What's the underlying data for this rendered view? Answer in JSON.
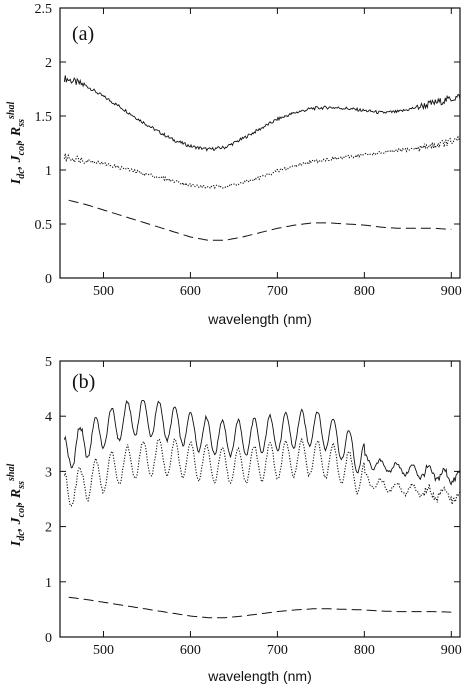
{
  "chart_data": [
    {
      "type": "line",
      "panel_label": "(a)",
      "xlabel": "wavelength (nm)",
      "ylabel": {
        "I": "I",
        "I_sub": "dc",
        "J": "J",
        "J_sub": "col",
        "R": "R",
        "R_sub": "ss",
        "R_sup": "shal"
      },
      "xlim": [
        450,
        910
      ],
      "ylim": [
        0,
        2.5
      ],
      "xticks": [
        "500",
        "600",
        "700",
        "800",
        "900"
      ],
      "yticks": [
        "0",
        "0.5",
        "1",
        "1.5",
        "2",
        "2.5"
      ],
      "series": [
        {
          "style": "solid-noisy",
          "x": [
            455,
            480,
            500,
            520,
            540,
            560,
            580,
            600,
            620,
            640,
            660,
            680,
            700,
            720,
            740,
            760,
            780,
            800,
            820,
            840,
            860,
            880,
            900,
            910
          ],
          "y": [
            1.85,
            1.78,
            1.68,
            1.58,
            1.47,
            1.37,
            1.28,
            1.22,
            1.19,
            1.21,
            1.29,
            1.38,
            1.47,
            1.53,
            1.57,
            1.58,
            1.57,
            1.55,
            1.53,
            1.54,
            1.58,
            1.62,
            1.66,
            1.68
          ]
        },
        {
          "style": "dotted-noisy",
          "x": [
            455,
            480,
            500,
            520,
            540,
            560,
            580,
            600,
            620,
            640,
            660,
            680,
            700,
            720,
            740,
            760,
            780,
            800,
            820,
            840,
            860,
            880,
            900,
            910
          ],
          "y": [
            1.12,
            1.09,
            1.06,
            1.02,
            0.98,
            0.94,
            0.9,
            0.86,
            0.84,
            0.85,
            0.88,
            0.93,
            0.99,
            1.04,
            1.08,
            1.1,
            1.12,
            1.14,
            1.16,
            1.18,
            1.2,
            1.23,
            1.26,
            1.28
          ]
        },
        {
          "style": "dashed",
          "x": [
            460,
            480,
            500,
            520,
            540,
            560,
            580,
            600,
            620,
            640,
            660,
            680,
            700,
            720,
            740,
            760,
            780,
            800,
            820,
            840,
            860,
            880,
            900
          ],
          "y": [
            0.72,
            0.68,
            0.63,
            0.58,
            0.53,
            0.48,
            0.43,
            0.38,
            0.35,
            0.35,
            0.38,
            0.42,
            0.46,
            0.49,
            0.51,
            0.51,
            0.5,
            0.49,
            0.47,
            0.46,
            0.46,
            0.46,
            0.45
          ]
        }
      ]
    },
    {
      "type": "line",
      "panel_label": "(b)",
      "xlabel": "wavelength (nm)",
      "ylabel": {
        "I": "I",
        "I_sub": "dc",
        "J": "J",
        "J_sub": "col",
        "R": "R",
        "R_sub": "ss",
        "R_sup": "shal"
      },
      "xlim": [
        450,
        910
      ],
      "ylim": [
        0,
        5
      ],
      "xticks": [
        "500",
        "600",
        "700",
        "800",
        "900"
      ],
      "yticks": [
        "0",
        "1",
        "2",
        "3",
        "4",
        "5"
      ],
      "series": [
        {
          "style": "solid-oscillating",
          "x": [
            455,
            480,
            500,
            520,
            540,
            560,
            580,
            600,
            620,
            640,
            660,
            680,
            700,
            720,
            740,
            760,
            780,
            800,
            820,
            840,
            860,
            880,
            900,
            910
          ],
          "y": [
            3.3,
            3.55,
            3.75,
            3.9,
            4.0,
            3.95,
            3.85,
            3.75,
            3.65,
            3.6,
            3.6,
            3.65,
            3.7,
            3.75,
            3.8,
            3.7,
            3.45,
            3.2,
            3.1,
            3.05,
            3.0,
            2.95,
            2.9,
            2.9
          ]
        },
        {
          "style": "dotted-oscillating",
          "x": [
            455,
            480,
            500,
            520,
            540,
            560,
            580,
            600,
            620,
            640,
            660,
            680,
            700,
            720,
            740,
            760,
            780,
            800,
            820,
            840,
            860,
            880,
            900,
            910
          ],
          "y": [
            2.65,
            2.8,
            2.95,
            3.1,
            3.2,
            3.25,
            3.25,
            3.2,
            3.15,
            3.1,
            3.1,
            3.15,
            3.2,
            3.25,
            3.25,
            3.2,
            3.05,
            2.85,
            2.75,
            2.7,
            2.65,
            2.6,
            2.55,
            2.55
          ]
        },
        {
          "style": "dashed",
          "x": [
            460,
            480,
            500,
            520,
            540,
            560,
            580,
            600,
            620,
            640,
            660,
            680,
            700,
            720,
            740,
            760,
            780,
            800,
            820,
            840,
            860,
            880,
            900
          ],
          "y": [
            0.72,
            0.68,
            0.63,
            0.58,
            0.53,
            0.48,
            0.43,
            0.38,
            0.35,
            0.35,
            0.38,
            0.42,
            0.46,
            0.49,
            0.51,
            0.51,
            0.5,
            0.49,
            0.47,
            0.46,
            0.46,
            0.46,
            0.45
          ]
        }
      ]
    }
  ]
}
